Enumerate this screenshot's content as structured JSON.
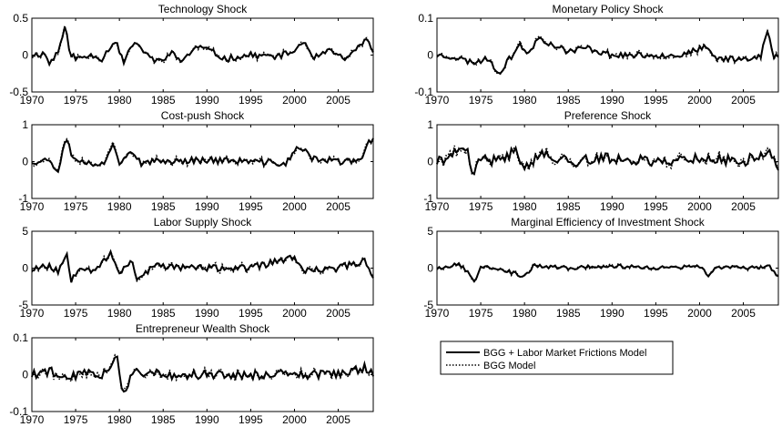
{
  "chart_data": [
    {
      "type": "line",
      "title": "Technology Shock",
      "xlim": [
        1970,
        2009
      ],
      "ylim": [
        -0.5,
        0.5
      ],
      "xticks": [
        "1970",
        "1975",
        "1980",
        "1985",
        "1990",
        "1995",
        "2000",
        "2005"
      ],
      "yticks": [
        "0.5",
        "0",
        "-0.5"
      ],
      "anchors": [
        [
          1970,
          0.0
        ],
        [
          1971.5,
          0.02
        ],
        [
          1972,
          -0.12
        ],
        [
          1973,
          0.05
        ],
        [
          1973.8,
          0.38
        ],
        [
          1974.3,
          0.05
        ],
        [
          1975,
          -0.05
        ],
        [
          1977,
          0.0
        ],
        [
          1978,
          -0.05
        ],
        [
          1979.5,
          0.2
        ],
        [
          1980.5,
          -0.1
        ],
        [
          1981.5,
          0.15
        ],
        [
          1983,
          0.05
        ],
        [
          1984,
          -0.1
        ],
        [
          1986,
          0.02
        ],
        [
          1987,
          -0.08
        ],
        [
          1989,
          0.12
        ],
        [
          1990.5,
          0.05
        ],
        [
          1992,
          -0.05
        ],
        [
          1995,
          0.0
        ],
        [
          1998,
          -0.02
        ],
        [
          2000,
          0.05
        ],
        [
          2001,
          0.2
        ],
        [
          2002,
          -0.05
        ],
        [
          2004,
          0.05
        ],
        [
          2006,
          -0.05
        ],
        [
          2007,
          0.05
        ],
        [
          2008,
          0.22
        ],
        [
          2008.7,
          0.12
        ],
        [
          2009,
          0.02
        ]
      ],
      "amp": 0.04,
      "seed": 11
    },
    {
      "type": "line",
      "title": "Monetary Policy Shock",
      "xlim": [
        1970,
        2009
      ],
      "ylim": [
        -0.1,
        0.1
      ],
      "xticks": [
        "1970",
        "1975",
        "1980",
        "1985",
        "1990",
        "1995",
        "2000",
        "2005"
      ],
      "yticks": [
        "0.1",
        "0",
        "-0.1"
      ],
      "anchors": [
        [
          1970,
          0.0
        ],
        [
          1972,
          -0.005
        ],
        [
          1974,
          -0.02
        ],
        [
          1976,
          -0.01
        ],
        [
          1977,
          -0.05
        ],
        [
          1978,
          -0.02
        ],
        [
          1979.5,
          0.03
        ],
        [
          1980.5,
          0.0
        ],
        [
          1981.5,
          0.05
        ],
        [
          1983,
          0.03
        ],
        [
          1985,
          0.01
        ],
        [
          1987,
          0.02
        ],
        [
          1990,
          0.0
        ],
        [
          1995,
          0.0
        ],
        [
          1998,
          0.0
        ],
        [
          2000.5,
          0.02
        ],
        [
          2002,
          -0.01
        ],
        [
          2005,
          -0.01
        ],
        [
          2007,
          0.0
        ],
        [
          2007.8,
          0.07
        ],
        [
          2008.4,
          -0.01
        ],
        [
          2009,
          0.0
        ]
      ],
      "amp": 0.008,
      "seed": 23
    },
    {
      "type": "line",
      "title": "Cost-push Shock",
      "xlim": [
        1970,
        2009
      ],
      "ylim": [
        -1,
        1
      ],
      "xticks": [
        "1970",
        "1975",
        "1980",
        "1985",
        "1990",
        "1995",
        "2000",
        "2005"
      ],
      "yticks": [
        "1",
        "0",
        "-1"
      ],
      "anchors": [
        [
          1970,
          0.0
        ],
        [
          1972,
          0.05
        ],
        [
          1973,
          -0.25
        ],
        [
          1973.9,
          0.75
        ],
        [
          1974.5,
          0.2
        ],
        [
          1975.5,
          0.0
        ],
        [
          1977,
          -0.05
        ],
        [
          1978.5,
          0.0
        ],
        [
          1979.3,
          0.55
        ],
        [
          1980,
          0.0
        ],
        [
          1981.5,
          0.3
        ],
        [
          1982.5,
          -0.1
        ],
        [
          1984,
          0.0
        ],
        [
          1990,
          0.05
        ],
        [
          1995,
          0.0
        ],
        [
          1999,
          -0.05
        ],
        [
          2000.5,
          0.4
        ],
        [
          2002,
          0.1
        ],
        [
          2005,
          0.0
        ],
        [
          2007.5,
          0.0
        ],
        [
          2008.6,
          0.6
        ],
        [
          2009,
          0.55
        ]
      ],
      "amp": 0.09,
      "seed": 37
    },
    {
      "type": "line",
      "title": "Preference Shock",
      "xlim": [
        1970,
        2009
      ],
      "ylim": [
        -1,
        1
      ],
      "xticks": [
        "1970",
        "1975",
        "1980",
        "1985",
        "1990",
        "1995",
        "2000",
        "2005"
      ],
      "yticks": [
        "1",
        "0",
        "-1"
      ],
      "anchors": [
        [
          1970,
          0.0
        ],
        [
          1972,
          0.2
        ],
        [
          1973.5,
          0.3
        ],
        [
          1974,
          -0.4
        ],
        [
          1975,
          0.1
        ],
        [
          1977,
          0.0
        ],
        [
          1979,
          0.3
        ],
        [
          1980,
          -0.1
        ],
        [
          1982,
          0.2
        ],
        [
          1985,
          0.0
        ],
        [
          1990,
          0.1
        ],
        [
          1995,
          0.0
        ],
        [
          2000,
          0.1
        ],
        [
          2005,
          0.0
        ],
        [
          2008,
          0.3
        ],
        [
          2009,
          -0.3
        ]
      ],
      "amp": 0.14,
      "seed": 41
    },
    {
      "type": "line",
      "title": "Labor Supply Shock",
      "xlim": [
        1970,
        2009
      ],
      "ylim": [
        -5,
        5
      ],
      "xticks": [
        "1970",
        "1975",
        "1980",
        "1985",
        "1990",
        "1995",
        "2000",
        "2005"
      ],
      "yticks": [
        "5",
        "0",
        "-5"
      ],
      "anchors": [
        [
          1970,
          0.0
        ],
        [
          1972,
          0.3
        ],
        [
          1973,
          -0.5
        ],
        [
          1974,
          2.0
        ],
        [
          1974.5,
          -1.5
        ],
        [
          1975.5,
          0.3
        ],
        [
          1977,
          -0.3
        ],
        [
          1979,
          1.8
        ],
        [
          1980,
          -0.5
        ],
        [
          1981.5,
          1.0
        ],
        [
          1982,
          -1.5
        ],
        [
          1984,
          0.3
        ],
        [
          1990,
          0.0
        ],
        [
          1995,
          0.0
        ],
        [
          2000,
          1.5
        ],
        [
          2001,
          -0.5
        ],
        [
          2005,
          0.0
        ],
        [
          2008,
          1.0
        ],
        [
          2009,
          -1.0
        ]
      ],
      "amp": 0.45,
      "seed": 53
    },
    {
      "type": "line",
      "title": "Marginal Efficiency of Investment Shock",
      "xlim": [
        1970,
        2009
      ],
      "ylim": [
        -5,
        5
      ],
      "xticks": [
        "1970",
        "1975",
        "1980",
        "1985",
        "1990",
        "1995",
        "2000",
        "2005"
      ],
      "yticks": [
        "5",
        "0",
        "-5"
      ],
      "anchors": [
        [
          1970,
          0.0
        ],
        [
          1972.5,
          0.5
        ],
        [
          1973.5,
          -0.5
        ],
        [
          1974.2,
          -2.0
        ],
        [
          1975,
          0.3
        ],
        [
          1977,
          0.0
        ],
        [
          1980,
          -1.2
        ],
        [
          1981,
          0.3
        ],
        [
          1985,
          0.0
        ],
        [
          1990,
          0.3
        ],
        [
          1995,
          0.0
        ],
        [
          2000,
          0.2
        ],
        [
          2001,
          -1.0
        ],
        [
          2002,
          0.2
        ],
        [
          2005,
          0.0
        ],
        [
          2008,
          0.3
        ],
        [
          2009,
          -1.3
        ]
      ],
      "amp": 0.25,
      "seed": 67
    },
    {
      "type": "line",
      "title": "Entrepreneur Wealth Shock",
      "xlim": [
        1970,
        2009
      ],
      "ylim": [
        -0.1,
        0.1
      ],
      "xticks": [
        "1970",
        "1975",
        "1980",
        "1985",
        "1990",
        "1995",
        "2000",
        "2005"
      ],
      "yticks": [
        "0.1",
        "0",
        "-0.1"
      ],
      "anchors": [
        [
          1970,
          0.0
        ],
        [
          1972,
          0.01
        ],
        [
          1974,
          -0.01
        ],
        [
          1976,
          0.005
        ],
        [
          1978,
          0.0
        ],
        [
          1979.8,
          0.05
        ],
        [
          1980.4,
          -0.06
        ],
        [
          1981.5,
          0.01
        ],
        [
          1985,
          0.0
        ],
        [
          1990,
          0.0
        ],
        [
          1995,
          0.0
        ],
        [
          2000,
          0.0
        ],
        [
          2005,
          0.0
        ],
        [
          2008,
          0.02
        ],
        [
          2009,
          0.0
        ]
      ],
      "amp": 0.012,
      "seed": 79
    }
  ],
  "legend": {
    "items": [
      {
        "label": "BGG + Labor Market Frictions Model",
        "style": "solid"
      },
      {
        "label": "BGG Model",
        "style": "dotted"
      }
    ]
  },
  "series_names": [
    "BGG + Labor Market Frictions Model",
    "BGG Model"
  ],
  "colors": {
    "line": "#000000",
    "frame": "#000000",
    "background": "#ffffff"
  }
}
